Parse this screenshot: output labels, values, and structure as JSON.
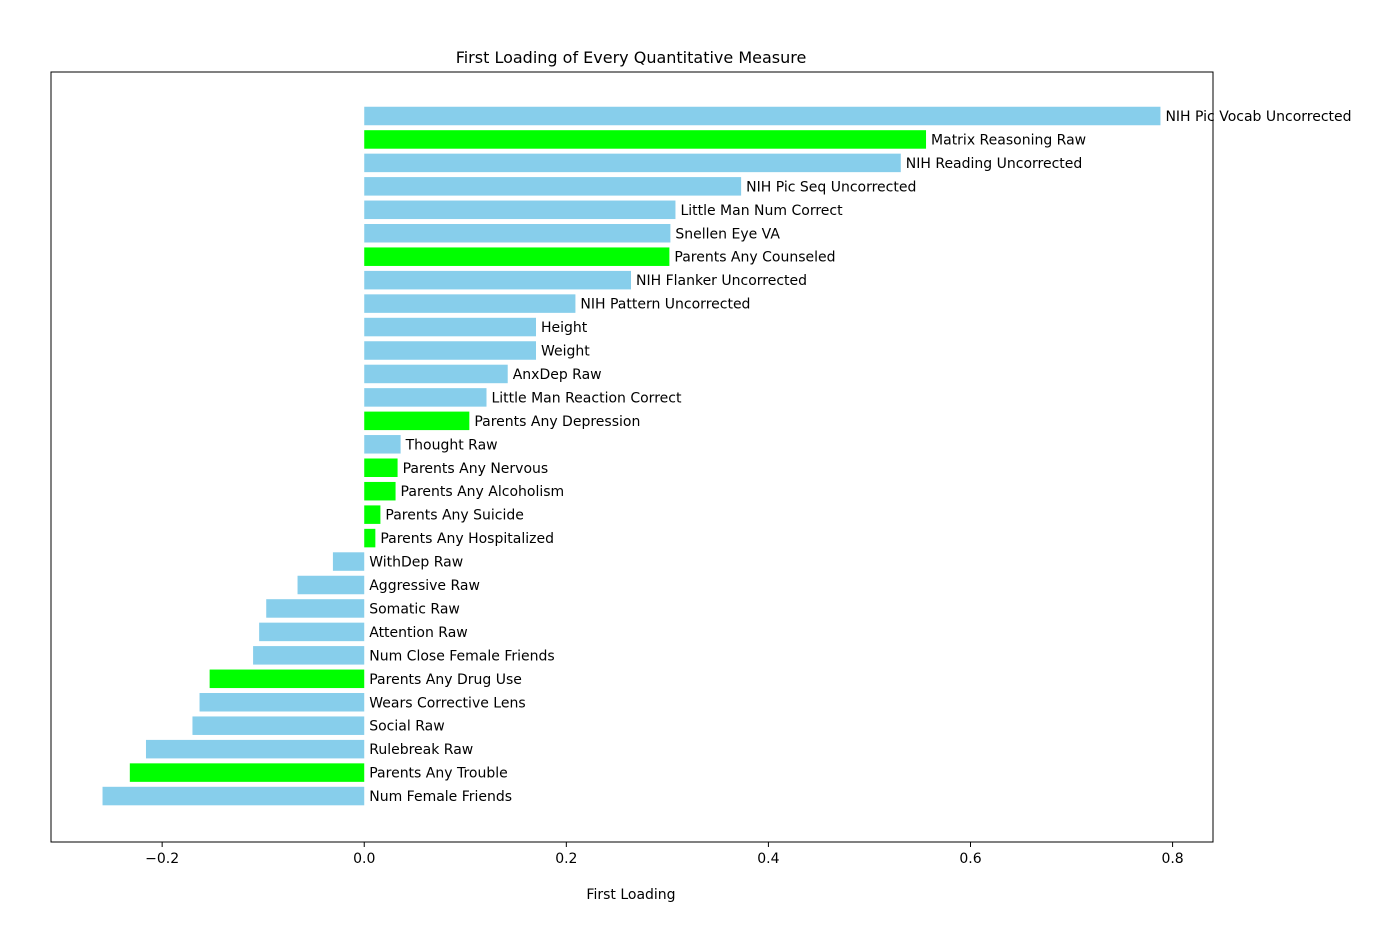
{
  "chart_data": {
    "type": "bar",
    "orientation": "horizontal",
    "title": "First Loading of Every Quantitative Measure",
    "xlabel": "First Loading",
    "ylabel": "",
    "xlim": [
      -0.31,
      0.84
    ],
    "xticks": [
      -0.2,
      0.0,
      0.2,
      0.4,
      0.6,
      0.8
    ],
    "xtick_labels": [
      "−0.2",
      "0.0",
      "0.2",
      "0.4",
      "0.6",
      "0.8"
    ],
    "grid": false,
    "legend": "none",
    "colors": {
      "default": "#87ceeb",
      "highlight": "#00ff00"
    },
    "bars": [
      {
        "label": "NIH Pic Vocab Uncorrected",
        "value": 0.788,
        "highlight": false
      },
      {
        "label": "Matrix Reasoning Raw",
        "value": 0.556,
        "highlight": true
      },
      {
        "label": "NIH Reading Uncorrected",
        "value": 0.531,
        "highlight": false
      },
      {
        "label": "NIH Pic Seq Uncorrected",
        "value": 0.373,
        "highlight": false
      },
      {
        "label": "Little Man Num Correct",
        "value": 0.308,
        "highlight": false
      },
      {
        "label": "Snellen Eye VA",
        "value": 0.303,
        "highlight": false
      },
      {
        "label": "Parents Any Counseled",
        "value": 0.302,
        "highlight": true
      },
      {
        "label": "NIH Flanker Uncorrected",
        "value": 0.264,
        "highlight": false
      },
      {
        "label": "NIH Pattern Uncorrected",
        "value": 0.209,
        "highlight": false
      },
      {
        "label": "Height",
        "value": 0.17,
        "highlight": false
      },
      {
        "label": "Weight",
        "value": 0.17,
        "highlight": false
      },
      {
        "label": "AnxDep Raw",
        "value": 0.142,
        "highlight": false
      },
      {
        "label": "Little Man Reaction Correct",
        "value": 0.121,
        "highlight": false
      },
      {
        "label": "Parents Any Depression",
        "value": 0.104,
        "highlight": true
      },
      {
        "label": "Thought Raw",
        "value": 0.036,
        "highlight": false
      },
      {
        "label": "Parents Any Nervous",
        "value": 0.033,
        "highlight": true
      },
      {
        "label": "Parents Any Alcoholism",
        "value": 0.031,
        "highlight": true
      },
      {
        "label": "Parents Any Suicide",
        "value": 0.016,
        "highlight": true
      },
      {
        "label": "Parents Any Hospitalized",
        "value": 0.011,
        "highlight": true
      },
      {
        "label": "WithDep Raw",
        "value": -0.031,
        "highlight": false
      },
      {
        "label": "Aggressive Raw",
        "value": -0.066,
        "highlight": false
      },
      {
        "label": "Somatic Raw",
        "value": -0.097,
        "highlight": false
      },
      {
        "label": "Attention Raw",
        "value": -0.104,
        "highlight": false
      },
      {
        "label": "Num Close Female Friends",
        "value": -0.11,
        "highlight": false
      },
      {
        "label": "Parents Any Drug Use",
        "value": -0.153,
        "highlight": true
      },
      {
        "label": "Wears Corrective Lens",
        "value": -0.163,
        "highlight": false
      },
      {
        "label": "Social Raw",
        "value": -0.17,
        "highlight": false
      },
      {
        "label": "Rulebreak Raw",
        "value": -0.216,
        "highlight": false
      },
      {
        "label": "Parents Any Trouble",
        "value": -0.232,
        "highlight": true
      },
      {
        "label": "Num Female Friends",
        "value": -0.259,
        "highlight": false
      }
    ]
  }
}
